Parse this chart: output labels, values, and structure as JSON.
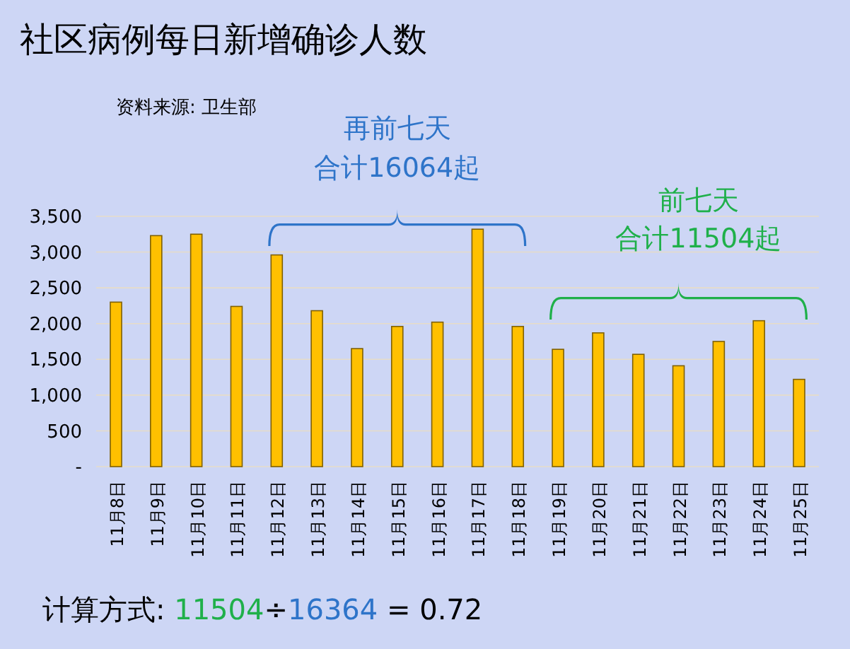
{
  "chart_data": {
    "type": "bar",
    "title": "社区病例每日新增确诊人数",
    "categories": [
      "11月8日",
      "11月9日",
      "11月10日",
      "11月11日",
      "11月12日",
      "11月13日",
      "11月14日",
      "11月15日",
      "11月16日",
      "11月17日",
      "11月18日",
      "11月19日",
      "11月20日",
      "11月21日",
      "11月22日",
      "11月23日",
      "11月24日",
      "11月25日"
    ],
    "values": [
      2300,
      3230,
      3250,
      2240,
      2960,
      2180,
      1650,
      1960,
      2020,
      3320,
      1960,
      1640,
      1870,
      1570,
      1410,
      1750,
      2040,
      1220
    ],
    "color": "#ffc000",
    "ylim": [
      0,
      3500
    ],
    "yticks": [
      {
        "value": 0,
        "label": "-"
      },
      {
        "value": 500,
        "label": "500"
      },
      {
        "value": 1000,
        "label": "1,000"
      },
      {
        "value": 1500,
        "label": "1,500"
      },
      {
        "value": 2000,
        "label": "2,000"
      },
      {
        "value": 2500,
        "label": "2,500"
      },
      {
        "value": 3000,
        "label": "3,000"
      },
      {
        "value": 3500,
        "label": "3,500"
      }
    ],
    "grid": "y",
    "annotations": [
      "资料来源: 卫生部",
      "再前七天",
      "合计16064起",
      "前七天",
      "合计11504起",
      "计算方式:",
      "11504",
      "÷",
      "16364",
      "= 0.72"
    ]
  }
}
